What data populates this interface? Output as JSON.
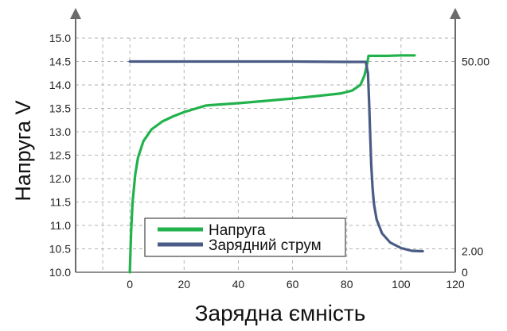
{
  "chart_data": {
    "type": "line",
    "title": "",
    "xlabel": "Зарядна ємність",
    "ylabel": "Напруга V",
    "xlim": [
      -20,
      120
    ],
    "ylim": [
      10.0,
      15.0
    ],
    "x_ticks": [
      0,
      20,
      40,
      60,
      80,
      100,
      120
    ],
    "y_ticks": [
      10.0,
      10.5,
      11.0,
      11.5,
      12.0,
      12.5,
      13.0,
      13.5,
      14.0,
      14.5,
      15.0
    ],
    "y_tick_labels": [
      "10.0",
      "10.5",
      "11.0",
      "11.5",
      "12.0",
      "12.5",
      "13.0",
      "13.5",
      "14.0",
      "14.5",
      "15.0"
    ],
    "y2_lim": [
      0,
      55
    ],
    "y2_ticks": [
      {
        "value": 0,
        "label": "0"
      },
      {
        "value": 2,
        "label": "2.00"
      },
      {
        "value": 50,
        "label": "50.00"
      }
    ],
    "grid": true,
    "legend_position": "bottom-left",
    "colors": {
      "voltage": "#22b24c",
      "current": "#4a5b85"
    },
    "series": [
      {
        "name": "Напруга",
        "axis": "left",
        "x": [
          0,
          0.5,
          1,
          2,
          3,
          5,
          8,
          12,
          16,
          20,
          24,
          28,
          30,
          40,
          50,
          60,
          70,
          78,
          82,
          85,
          86.5,
          87.5,
          88,
          90,
          95,
          100,
          105
        ],
        "y": [
          10.0,
          10.9,
          11.5,
          12.1,
          12.45,
          12.8,
          13.05,
          13.22,
          13.33,
          13.42,
          13.49,
          13.56,
          13.57,
          13.61,
          13.66,
          13.71,
          13.77,
          13.82,
          13.88,
          14.0,
          14.2,
          14.45,
          14.62,
          14.62,
          14.62,
          14.63,
          14.63
        ]
      },
      {
        "name": "Зарядний струм",
        "axis": "right",
        "x": [
          0,
          20,
          40,
          60,
          80,
          85,
          87,
          87.8,
          88.2,
          88.6,
          89,
          89.5,
          90,
          91,
          93,
          96,
          100,
          104,
          108
        ],
        "y": [
          50.0,
          50.0,
          50.0,
          50.0,
          49.9,
          49.9,
          49.9,
          47,
          40,
          32,
          24,
          18,
          14,
          10,
          6.5,
          4.2,
          2.8,
          2.1,
          2.0
        ]
      }
    ]
  }
}
